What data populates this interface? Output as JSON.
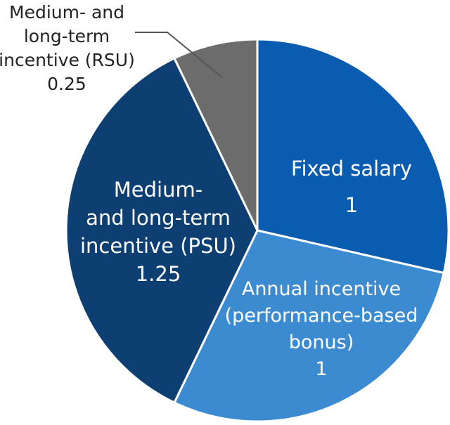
{
  "chart_data": {
    "type": "pie",
    "title": "",
    "start_angle_deg": 0,
    "direction": "clockwise",
    "slices": [
      {
        "key": "fixed_salary",
        "label_lines": [
          "Fixed salary"
        ],
        "value": 1,
        "value_label": "1",
        "color": "#0a5cb0",
        "label_color": "#ffffff"
      },
      {
        "key": "annual_incentive",
        "label_lines": [
          "Annual incentive",
          "(performance-based",
          "bonus)"
        ],
        "value": 1,
        "value_label": "1",
        "color": "#3c8ad0",
        "label_color": "#ffffff"
      },
      {
        "key": "psu",
        "label_lines": [
          "Medium-",
          "and long-term",
          "incentive (PSU)"
        ],
        "value": 1.25,
        "value_label": "1.25",
        "color": "#0d3f73",
        "label_color": "#ffffff"
      },
      {
        "key": "rsu",
        "label_lines": [
          "Medium- and",
          "long-term",
          "incentive (RSU)"
        ],
        "value": 0.25,
        "value_label": "0.25",
        "color": "#6c6c6c",
        "label_color": "#222222"
      }
    ]
  }
}
